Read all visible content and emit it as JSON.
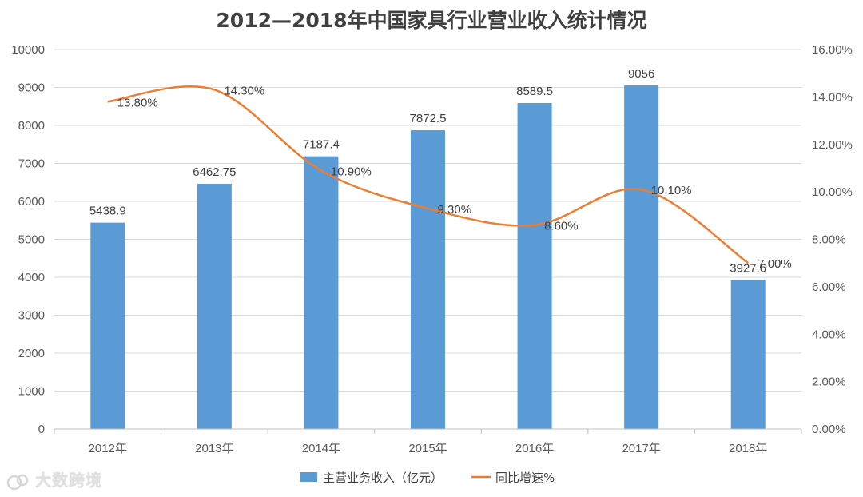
{
  "chart_data": {
    "type": "bar",
    "title": "2012—2018年中国家具行业营业收入统计情况",
    "categories": [
      "2012年",
      "2013年",
      "2014年",
      "2015年",
      "2016年",
      "2017年",
      "2018年"
    ],
    "series": [
      {
        "name": "主营业务收入（亿元）",
        "type": "bar",
        "axis": "left",
        "values": [
          5438.9,
          6462.75,
          7187.4,
          7872.5,
          8589.5,
          9056,
          3927.6
        ],
        "labels": [
          "5438.9",
          "6462.75",
          "7187.4",
          "7872.5",
          "8589.5",
          "9056",
          "3927.6"
        ]
      },
      {
        "name": "同比增速%",
        "type": "line",
        "axis": "right",
        "values": [
          13.8,
          14.3,
          10.9,
          9.3,
          8.6,
          10.1,
          7.0
        ],
        "labels": [
          "13.80%",
          "14.30%",
          "10.90%",
          "9.30%",
          "8.60%",
          "10.10%",
          "7.00%"
        ]
      }
    ],
    "y_left": {
      "range": [
        0,
        10000
      ],
      "ticks": [
        "0",
        "1000",
        "2000",
        "3000",
        "4000",
        "5000",
        "6000",
        "7000",
        "8000",
        "9000",
        "10000"
      ]
    },
    "y_right": {
      "range": [
        0,
        16
      ],
      "ticks": [
        "0.00%",
        "2.00%",
        "4.00%",
        "6.00%",
        "8.00%",
        "10.00%",
        "12.00%",
        "14.00%",
        "16.00%"
      ]
    },
    "grid": true,
    "legend_position": "bottom"
  },
  "colors": {
    "bar": "#5B9BD5",
    "line": "#ED7D31",
    "grid": "#D9D9D9",
    "text": "#404040"
  },
  "watermark": {
    "text": "大数跨境"
  }
}
